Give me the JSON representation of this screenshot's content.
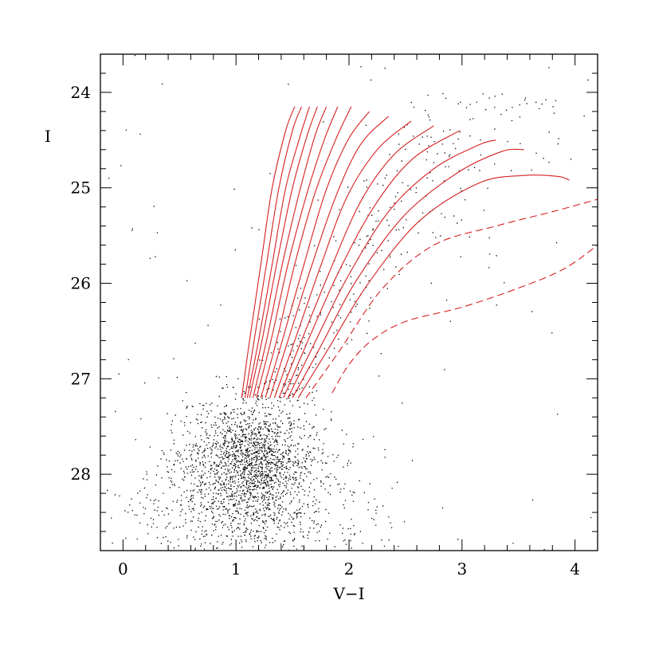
{
  "chart_data": {
    "type": "scatter",
    "xlabel": "V−I",
    "ylabel": "I",
    "xlim": [
      -0.2,
      4.2
    ],
    "ylim": [
      28.8,
      23.6
    ],
    "y_inverted": true,
    "grid": false,
    "x_ticks": [
      0,
      1,
      2,
      3,
      4
    ],
    "x_tick_labels": [
      "0",
      "1",
      "2",
      "3",
      "4"
    ],
    "y_ticks": [
      24,
      25,
      26,
      27,
      28
    ],
    "y_tick_labels": [
      "24",
      "25",
      "26",
      "27",
      "28"
    ],
    "colors": {
      "points": "#000000",
      "isochrones": "#d62020"
    },
    "point_cloud": {
      "description_free": true,
      "components": [
        {
          "center": [
            1.05,
            27.95
          ],
          "spread": [
            0.33,
            0.36
          ],
          "weight": 0.42
        },
        {
          "center": [
            1.2,
            27.8
          ],
          "spread": [
            0.22,
            0.3
          ],
          "weight": 0.25
        },
        {
          "center": [
            1.0,
            28.5
          ],
          "spread": [
            0.55,
            0.3
          ],
          "weight": 0.14
        },
        {
          "center": [
            1.7,
            28.3
          ],
          "spread": [
            0.45,
            0.35
          ],
          "weight": 0.05
        }
      ],
      "branch": {
        "i_range": [
          24.0,
          27.3
        ],
        "color_center_at_27": 1.35,
        "slope": -0.18,
        "spread_base": 0.12,
        "spread_growth": 0.35,
        "weight": 0.11
      },
      "uniform_background_weight": 0.03
    },
    "series": [
      {
        "x": [
          1.05,
          1.12,
          1.22,
          1.32,
          1.44,
          1.52
        ],
        "y": [
          27.2,
          26.6,
          25.8,
          25.0,
          24.4,
          24.15
        ]
      },
      {
        "x": [
          1.08,
          1.16,
          1.27,
          1.38,
          1.5,
          1.58
        ],
        "y": [
          27.2,
          26.6,
          25.8,
          25.0,
          24.4,
          24.15
        ]
      },
      {
        "x": [
          1.1,
          1.2,
          1.32,
          1.44,
          1.57,
          1.65
        ],
        "y": [
          27.2,
          26.6,
          25.8,
          25.0,
          24.45,
          24.15
        ]
      },
      {
        "x": [
          1.12,
          1.23,
          1.36,
          1.5,
          1.63,
          1.72
        ],
        "y": [
          27.2,
          26.6,
          25.8,
          25.0,
          24.45,
          24.15
        ]
      },
      {
        "x": [
          1.15,
          1.27,
          1.41,
          1.56,
          1.7,
          1.8
        ],
        "y": [
          27.2,
          26.6,
          25.8,
          25.05,
          24.45,
          24.15
        ]
      },
      {
        "x": [
          1.18,
          1.31,
          1.46,
          1.63,
          1.78,
          1.9
        ],
        "y": [
          27.2,
          26.6,
          25.8,
          25.05,
          24.5,
          24.15
        ]
      },
      {
        "x": [
          1.22,
          1.36,
          1.52,
          1.7,
          1.88,
          2.02
        ],
        "y": [
          27.2,
          26.6,
          25.8,
          25.05,
          24.5,
          24.15
        ]
      },
      {
        "x": [
          1.26,
          1.41,
          1.59,
          1.79,
          1.99,
          2.18
        ],
        "y": [
          27.2,
          26.6,
          25.85,
          25.05,
          24.5,
          24.2
        ]
      },
      {
        "x": [
          1.3,
          1.46,
          1.66,
          1.88,
          2.1,
          2.35
        ],
        "y": [
          27.2,
          26.6,
          25.85,
          25.1,
          24.55,
          24.25
        ]
      },
      {
        "x": [
          1.34,
          1.52,
          1.74,
          1.98,
          2.25,
          2.55
        ],
        "y": [
          27.2,
          26.6,
          25.85,
          25.1,
          24.6,
          24.3
        ]
      },
      {
        "x": [
          1.38,
          1.58,
          1.82,
          2.1,
          2.4,
          2.75
        ],
        "y": [
          27.2,
          26.6,
          25.9,
          25.15,
          24.65,
          24.35
        ]
      },
      {
        "x": [
          1.42,
          1.63,
          1.9,
          2.22,
          2.56,
          2.98
        ],
        "y": [
          27.2,
          26.62,
          25.9,
          25.2,
          24.7,
          24.4
        ]
      },
      {
        "x": [
          1.46,
          1.69,
          1.98,
          2.35,
          2.75,
          3.15,
          3.3
        ],
        "y": [
          27.2,
          26.64,
          25.95,
          25.25,
          24.8,
          24.55,
          24.5
        ]
      },
      {
        "x": [
          1.5,
          1.75,
          2.06,
          2.48,
          2.95,
          3.35,
          3.55
        ],
        "y": [
          27.2,
          26.66,
          25.98,
          25.3,
          24.85,
          24.62,
          24.6
        ]
      },
      {
        "x": [
          1.55,
          1.82,
          2.16,
          2.62,
          3.15,
          3.55,
          3.85,
          3.95
        ],
        "y": [
          27.2,
          26.68,
          26.02,
          25.35,
          24.95,
          24.87,
          24.88,
          24.92
        ]
      },
      {
        "x": [
          1.62,
          1.92,
          2.3,
          2.75,
          3.3,
          3.8,
          4.2
        ],
        "y": [
          27.2,
          26.7,
          26.05,
          25.6,
          25.4,
          25.25,
          25.12
        ],
        "dashed": true
      },
      {
        "x": [
          1.85,
          2.0,
          2.2,
          2.5,
          3.0,
          3.5,
          3.9,
          4.2
        ],
        "y": [
          27.15,
          26.85,
          26.6,
          26.4,
          26.25,
          26.05,
          25.85,
          25.6
        ],
        "dashed": true
      }
    ]
  }
}
